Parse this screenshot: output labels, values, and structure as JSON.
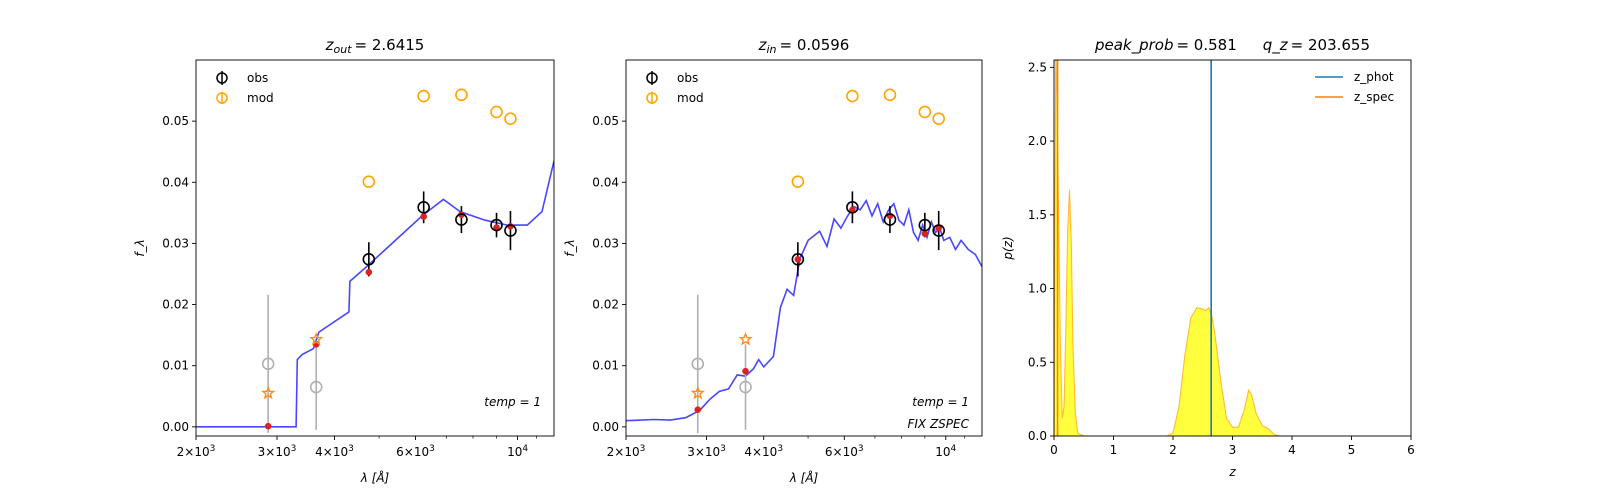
{
  "chart_data": [
    {
      "type": "scatter",
      "title": "z_out = 2.6415",
      "title_var": "z",
      "title_sub": "out",
      "title_val": "= 2.6415",
      "xlabel": "λ [Å]",
      "ylabel": "f_λ",
      "xscale": "log",
      "xlim": [
        2000,
        12000
      ],
      "ylim": [
        -0.0015,
        0.06
      ],
      "xticks": [
        {
          "value": 2000,
          "base": "2×10",
          "exp": "3"
        },
        {
          "value": 3000,
          "base": "3×10",
          "exp": "3"
        },
        {
          "value": 4000,
          "base": "4×10",
          "exp": "3"
        },
        {
          "value": 6000,
          "base": "6×10",
          "exp": "3"
        },
        {
          "value": 10000,
          "base": "10",
          "exp": "4"
        }
      ],
      "yticks": [
        0.0,
        0.01,
        0.02,
        0.03,
        0.04,
        0.05
      ],
      "ytick_labels": [
        "0.00",
        "0.01",
        "0.02",
        "0.03",
        "0.04",
        "0.05"
      ],
      "annotations": [
        "temp = 1"
      ],
      "legend": {
        "placement": "upper-left",
        "entries": [
          "obs",
          "mod"
        ]
      },
      "model_curve": {
        "color": "#3333ff",
        "points": [
          [
            2000,
            0
          ],
          [
            3300,
            0
          ],
          [
            3320,
            0.011
          ],
          [
            3400,
            0.0118
          ],
          [
            3600,
            0.0128
          ],
          [
            3700,
            0.0155
          ],
          [
            4300,
            0.0188
          ],
          [
            4320,
            0.0238
          ],
          [
            4700,
            0.0262
          ],
          [
            6200,
            0.0345
          ],
          [
            6900,
            0.0372
          ],
          [
            7500,
            0.0352
          ],
          [
            8500,
            0.0338
          ],
          [
            9500,
            0.033
          ],
          [
            10500,
            0.033
          ],
          [
            11300,
            0.0352
          ],
          [
            12000,
            0.0435
          ]
        ]
      },
      "obs": [
        {
          "x": 2870,
          "y": 0.0103,
          "err": 0.0113,
          "status": "low-sn"
        },
        {
          "x": 3650,
          "y": 0.0065,
          "err": 0.007,
          "status": "low-sn"
        },
        {
          "x": 4750,
          "y": 0.0274,
          "err": 0.0028
        },
        {
          "x": 6250,
          "y": 0.0359,
          "err": 0.0026
        },
        {
          "x": 7550,
          "y": 0.0339,
          "err": 0.0022
        },
        {
          "x": 9000,
          "y": 0.033,
          "err": 0.002
        },
        {
          "x": 9650,
          "y": 0.0321,
          "err": 0.0032
        }
      ],
      "model_points": [
        {
          "x": 2870,
          "y": 0.0001
        },
        {
          "x": 3650,
          "y": 0.0135
        },
        {
          "x": 4750,
          "y": 0.0253
        },
        {
          "x": 6250,
          "y": 0.0344
        },
        {
          "x": 7550,
          "y": 0.0347
        },
        {
          "x": 9000,
          "y": 0.0326
        },
        {
          "x": 9650,
          "y": 0.0328
        }
      ],
      "stars": [
        {
          "x": 2870,
          "y": 0.0055
        },
        {
          "x": 3650,
          "y": 0.0143
        }
      ],
      "mod_circles": [
        {
          "x": 4750,
          "y": 0.0401
        },
        {
          "x": 6250,
          "y": 0.0541
        },
        {
          "x": 7550,
          "y": 0.0543
        },
        {
          "x": 9000,
          "y": 0.0515
        },
        {
          "x": 9650,
          "y": 0.0504
        }
      ]
    },
    {
      "type": "scatter",
      "title": "z_in = 0.0596",
      "title_var": "z",
      "title_sub": "in",
      "title_val": "= 0.0596",
      "xlabel": "λ [Å]",
      "ylabel": "f_λ",
      "xscale": "log",
      "xlim": [
        2000,
        12000
      ],
      "ylim": [
        -0.0015,
        0.06
      ],
      "xticks": [
        {
          "value": 2000,
          "base": "2×10",
          "exp": "3"
        },
        {
          "value": 3000,
          "base": "3×10",
          "exp": "3"
        },
        {
          "value": 4000,
          "base": "4×10",
          "exp": "3"
        },
        {
          "value": 6000,
          "base": "6×10",
          "exp": "3"
        },
        {
          "value": 10000,
          "base": "10",
          "exp": "4"
        }
      ],
      "yticks": [
        0.0,
        0.01,
        0.02,
        0.03,
        0.04,
        0.05
      ],
      "ytick_labels": [
        "0.00",
        "0.01",
        "0.02",
        "0.03",
        "0.04",
        "0.05"
      ],
      "annotations": [
        "temp = 1",
        "FIX ZSPEC"
      ],
      "legend": {
        "placement": "upper-left",
        "entries": [
          "obs",
          "mod"
        ]
      },
      "model_curve": {
        "color": "#3333ff",
        "points": [
          [
            2000,
            0.001
          ],
          [
            2300,
            0.0012
          ],
          [
            2500,
            0.0011
          ],
          [
            2700,
            0.0015
          ],
          [
            2900,
            0.0027
          ],
          [
            3050,
            0.0045
          ],
          [
            3200,
            0.0058
          ],
          [
            3350,
            0.0062
          ],
          [
            3500,
            0.0085
          ],
          [
            3650,
            0.0083
          ],
          [
            3800,
            0.0095
          ],
          [
            3900,
            0.011
          ],
          [
            4000,
            0.0098
          ],
          [
            4200,
            0.0115
          ],
          [
            4350,
            0.0195
          ],
          [
            4500,
            0.0225
          ],
          [
            4650,
            0.0215
          ],
          [
            4800,
            0.0275
          ],
          [
            5000,
            0.0305
          ],
          [
            5300,
            0.032
          ],
          [
            5500,
            0.0295
          ],
          [
            5700,
            0.034
          ],
          [
            5900,
            0.0325
          ],
          [
            6100,
            0.0345
          ],
          [
            6300,
            0.036
          ],
          [
            6500,
            0.0355
          ],
          [
            6700,
            0.037
          ],
          [
            6900,
            0.0345
          ],
          [
            7100,
            0.0365
          ],
          [
            7300,
            0.0335
          ],
          [
            7500,
            0.0355
          ],
          [
            7700,
            0.0365
          ],
          [
            7900,
            0.0338
          ],
          [
            8100,
            0.033
          ],
          [
            8300,
            0.0355
          ],
          [
            8500,
            0.0318
          ],
          [
            8700,
            0.0305
          ],
          [
            8900,
            0.033
          ],
          [
            9100,
            0.031
          ],
          [
            9300,
            0.0335
          ],
          [
            9500,
            0.0318
          ],
          [
            9700,
            0.0325
          ],
          [
            9900,
            0.0305
          ],
          [
            10200,
            0.031
          ],
          [
            10500,
            0.029
          ],
          [
            10800,
            0.0305
          ],
          [
            11200,
            0.029
          ],
          [
            11600,
            0.0282
          ],
          [
            12000,
            0.0262
          ]
        ]
      },
      "obs": [
        {
          "x": 2870,
          "y": 0.0103,
          "err": 0.0113,
          "status": "low-sn"
        },
        {
          "x": 3650,
          "y": 0.0065,
          "err": 0.007,
          "status": "low-sn"
        },
        {
          "x": 4750,
          "y": 0.0274,
          "err": 0.0028
        },
        {
          "x": 6250,
          "y": 0.0359,
          "err": 0.0026
        },
        {
          "x": 7550,
          "y": 0.0339,
          "err": 0.0022
        },
        {
          "x": 9000,
          "y": 0.033,
          "err": 0.002
        },
        {
          "x": 9650,
          "y": 0.0321,
          "err": 0.0032
        }
      ],
      "model_points": [
        {
          "x": 2870,
          "y": 0.0028
        },
        {
          "x": 3650,
          "y": 0.0091
        },
        {
          "x": 4750,
          "y": 0.0274
        },
        {
          "x": 6250,
          "y": 0.0355
        },
        {
          "x": 7550,
          "y": 0.0345
        },
        {
          "x": 9000,
          "y": 0.0316
        },
        {
          "x": 9650,
          "y": 0.0325
        }
      ],
      "stars": [
        {
          "x": 2870,
          "y": 0.0055
        },
        {
          "x": 3650,
          "y": 0.0143
        }
      ],
      "mod_circles": [
        {
          "x": 4750,
          "y": 0.0401
        },
        {
          "x": 6250,
          "y": 0.0541
        },
        {
          "x": 7550,
          "y": 0.0543
        },
        {
          "x": 9000,
          "y": 0.0515
        },
        {
          "x": 9650,
          "y": 0.0504
        }
      ]
    },
    {
      "type": "area",
      "title": "peak_prob = 0.581    q_z = 203.655",
      "title_a_var": "peak_prob",
      "title_a_val": "= 0.581",
      "title_b_var": "q_z",
      "title_b_val": "= 203.655",
      "xlabel": "z",
      "ylabel": "p(z)",
      "xlim": [
        0,
        6
      ],
      "ylim": [
        0,
        2.55
      ],
      "xticks": [
        0,
        1,
        2,
        3,
        4,
        5,
        6
      ],
      "xtick_labels": [
        "0",
        "1",
        "2",
        "3",
        "4",
        "5",
        "6"
      ],
      "yticks": [
        0.0,
        0.5,
        1.0,
        1.5,
        2.0,
        2.5
      ],
      "ytick_labels": [
        "0.0",
        "0.5",
        "1.0",
        "1.5",
        "2.0",
        "2.5"
      ],
      "legend": {
        "placement": "upper-right",
        "entries": [
          "z_phot",
          "z_spec"
        ]
      },
      "colors": {
        "fill": "#ffff33",
        "outline": "#ffbb33",
        "z_phot": "#1f77b4",
        "z_spec": "#ff7f0e"
      },
      "z_phot": 2.6415,
      "z_spec": 0.0596,
      "pz": [
        [
          0,
          0
        ],
        [
          0.01,
          1.2
        ],
        [
          0.03,
          2.6
        ],
        [
          0.05,
          2.3
        ],
        [
          0.08,
          1.4
        ],
        [
          0.11,
          0.55
        ],
        [
          0.14,
          0.12
        ],
        [
          0.17,
          0.2
        ],
        [
          0.2,
          0.75
        ],
        [
          0.23,
          1.4
        ],
        [
          0.26,
          1.67
        ],
        [
          0.29,
          1.3
        ],
        [
          0.32,
          0.6
        ],
        [
          0.36,
          0.15
        ],
        [
          0.4,
          0.02
        ],
        [
          0.5,
          0
        ],
        [
          1.9,
          0
        ],
        [
          2.0,
          0.02
        ],
        [
          2.1,
          0.2
        ],
        [
          2.2,
          0.55
        ],
        [
          2.3,
          0.8
        ],
        [
          2.4,
          0.87
        ],
        [
          2.5,
          0.86
        ],
        [
          2.55,
          0.85
        ],
        [
          2.6,
          0.87
        ],
        [
          2.65,
          0.82
        ],
        [
          2.7,
          0.7
        ],
        [
          2.8,
          0.38
        ],
        [
          2.9,
          0.12
        ],
        [
          3.0,
          0.06
        ],
        [
          3.1,
          0.06
        ],
        [
          3.2,
          0.18
        ],
        [
          3.27,
          0.31
        ],
        [
          3.32,
          0.28
        ],
        [
          3.4,
          0.15
        ],
        [
          3.5,
          0.07
        ],
        [
          3.6,
          0.05
        ],
        [
          3.7,
          0.01
        ],
        [
          3.8,
          0
        ],
        [
          6,
          0
        ]
      ]
    }
  ]
}
